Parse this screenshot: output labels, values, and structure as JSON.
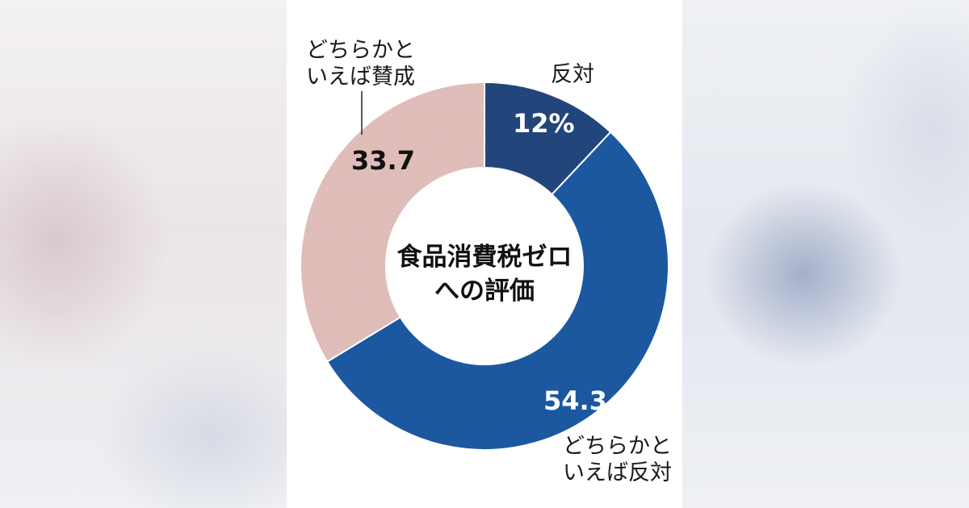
{
  "chart_data": {
    "type": "pie",
    "donut": true,
    "title": "食品消費税ゼロへの評価",
    "categories": [
      "反対",
      "どちらかといえば反対",
      "どちらかといえば賛成"
    ],
    "values": [
      12,
      54.3,
      33.7
    ],
    "value_labels": [
      "12%",
      "54.3",
      "33.7"
    ],
    "category_label_lines": [
      [
        "反対"
      ],
      [
        "どちらかと",
        "いえば反対"
      ],
      [
        "どちらかと",
        "いえば賛成"
      ]
    ],
    "colors": [
      "#1d3f73",
      "#1b58a0",
      "#dcb8b4"
    ]
  }
}
